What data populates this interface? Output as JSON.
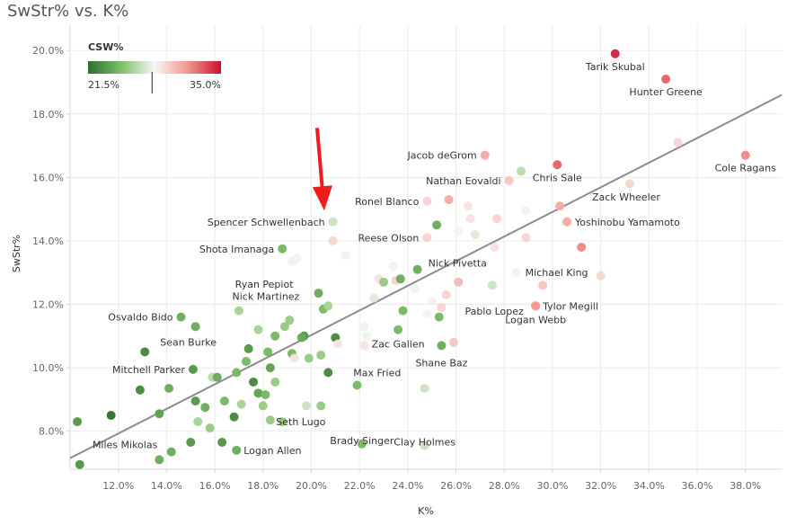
{
  "chart_data": {
    "type": "scatter",
    "title": "SwStr% vs. K%",
    "xlabel": "K%",
    "ylabel": "SwStr%",
    "xlim": [
      10.0,
      39.5
    ],
    "ylim": [
      6.8,
      20.8
    ],
    "x_ticks": [
      12,
      14,
      16,
      18,
      20,
      22,
      24,
      26,
      28,
      30,
      32,
      34,
      36,
      38
    ],
    "y_ticks": [
      8,
      10,
      12,
      14,
      16,
      18,
      20
    ],
    "tick_suffix": ".0%",
    "legend": {
      "title": "CSW%",
      "min_label": "21.5%",
      "max_label": "35.0%",
      "min": 21.5,
      "max": 35.0,
      "marker": 28.0,
      "placement": "top-left",
      "colors": [
        "#2b6e2b",
        "#7fbf66",
        "#f7f7f7",
        "#f3978f",
        "#c8102e"
      ]
    },
    "trendline": {
      "x": [
        10.0,
        39.5
      ],
      "y": [
        7.15,
        18.6
      ],
      "color": "#8c8c8c"
    },
    "arrow": {
      "x": 20.8,
      "y": 14.7,
      "color": "#ee1c1c"
    },
    "points": [
      {
        "x": 32.6,
        "y": 19.9,
        "csw": 34.5,
        "label": "Tarik Skubal",
        "anchor": "middle",
        "dx": 0,
        "dy": 18
      },
      {
        "x": 34.7,
        "y": 19.1,
        "csw": 33.0,
        "label": "Hunter Greene",
        "anchor": "middle",
        "dx": 0,
        "dy": 18
      },
      {
        "x": 35.2,
        "y": 17.1,
        "csw": 29.5,
        "label": "",
        "anchor": "start",
        "dx": 0,
        "dy": 0
      },
      {
        "x": 38.0,
        "y": 16.7,
        "csw": 32.0,
        "label": "Cole Ragans",
        "anchor": "middle",
        "dx": 0,
        "dy": 18
      },
      {
        "x": 30.2,
        "y": 16.4,
        "csw": 33.0,
        "label": "Chris Sale",
        "anchor": "middle",
        "dx": 0,
        "dy": 18
      },
      {
        "x": 27.2,
        "y": 16.7,
        "csw": 31.0,
        "label": "Jacob deGrom",
        "anchor": "end",
        "dx": -9,
        "dy": 4
      },
      {
        "x": 28.7,
        "y": 16.2,
        "csw": 26.5,
        "label": "",
        "anchor": "start",
        "dx": 0,
        "dy": 0
      },
      {
        "x": 28.2,
        "y": 15.9,
        "csw": 30.0,
        "label": "Nathan Eovaldi",
        "anchor": "end",
        "dx": -9,
        "dy": 4
      },
      {
        "x": 33.2,
        "y": 15.8,
        "csw": 29.5,
        "label": "",
        "anchor": "start",
        "dx": 0,
        "dy": 0
      },
      {
        "x": 25.7,
        "y": 15.3,
        "csw": 31.0,
        "label": "",
        "anchor": "start",
        "dx": 0,
        "dy": 0
      },
      {
        "x": 24.8,
        "y": 15.25,
        "csw": 29.5,
        "label": "Ronel Blanco",
        "anchor": "end",
        "dx": -9,
        "dy": 4
      },
      {
        "x": 30.3,
        "y": 15.1,
        "csw": 31.0,
        "label": "Zack Wheeler",
        "anchor": "start",
        "dx": 36,
        "dy": -6
      },
      {
        "x": 26.5,
        "y": 15.1,
        "csw": 29.0,
        "label": "",
        "anchor": "start",
        "dx": 0,
        "dy": 0
      },
      {
        "x": 28.9,
        "y": 14.95,
        "csw": 28.0,
        "label": "",
        "anchor": "start",
        "dx": 0,
        "dy": 0
      },
      {
        "x": 20.9,
        "y": 14.6,
        "csw": 27.0,
        "label": "Spencer Schwellenbach",
        "anchor": "end",
        "dx": -9,
        "dy": 4
      },
      {
        "x": 30.6,
        "y": 14.6,
        "csw": 31.0,
        "label": "Yoshinobu Yamamoto",
        "anchor": "start",
        "dx": 9,
        "dy": 4
      },
      {
        "x": 26.6,
        "y": 14.7,
        "csw": 29.0,
        "label": "",
        "anchor": "start",
        "dx": 0,
        "dy": 0
      },
      {
        "x": 27.7,
        "y": 14.7,
        "csw": 29.5,
        "label": "",
        "anchor": "start",
        "dx": 0,
        "dy": 0
      },
      {
        "x": 25.2,
        "y": 14.5,
        "csw": 24.0,
        "label": "",
        "anchor": "start",
        "dx": 0,
        "dy": 0
      },
      {
        "x": 26.1,
        "y": 14.3,
        "csw": 28.5,
        "label": "",
        "anchor": "start",
        "dx": 0,
        "dy": 0
      },
      {
        "x": 26.8,
        "y": 14.2,
        "csw": 27.5,
        "label": "",
        "anchor": "start",
        "dx": 0,
        "dy": 0
      },
      {
        "x": 20.9,
        "y": 14.0,
        "csw": 29.5,
        "label": "",
        "anchor": "start",
        "dx": 0,
        "dy": 0
      },
      {
        "x": 24.8,
        "y": 14.1,
        "csw": 29.5,
        "label": "Reese Olson",
        "anchor": "end",
        "dx": -9,
        "dy": 4
      },
      {
        "x": 28.9,
        "y": 14.1,
        "csw": 29.5,
        "label": "",
        "anchor": "start",
        "dx": 0,
        "dy": 0
      },
      {
        "x": 27.6,
        "y": 13.8,
        "csw": 29.0,
        "label": "",
        "anchor": "start",
        "dx": 0,
        "dy": 0
      },
      {
        "x": 31.2,
        "y": 13.8,
        "csw": 32.0,
        "label": "",
        "anchor": "start",
        "dx": 0,
        "dy": 0
      },
      {
        "x": 18.8,
        "y": 13.75,
        "csw": 24.5,
        "label": "Shota Imanaga",
        "anchor": "end",
        "dx": -9,
        "dy": 4
      },
      {
        "x": 21.4,
        "y": 13.55,
        "csw": 28.0,
        "label": "",
        "anchor": "start",
        "dx": 0,
        "dy": 0
      },
      {
        "x": 19.4,
        "y": 13.45,
        "csw": 28.0,
        "label": "",
        "anchor": "start",
        "dx": 0,
        "dy": 0
      },
      {
        "x": 19.2,
        "y": 13.35,
        "csw": 28.0,
        "label": "",
        "anchor": "start",
        "dx": 0,
        "dy": 0
      },
      {
        "x": 23.4,
        "y": 13.2,
        "csw": 28.0,
        "label": "",
        "anchor": "start",
        "dx": 0,
        "dy": 0
      },
      {
        "x": 24.4,
        "y": 13.1,
        "csw": 24.0,
        "label": "Nick Pivetta",
        "anchor": "start",
        "dx": 12,
        "dy": -3
      },
      {
        "x": 28.5,
        "y": 13.0,
        "csw": 28.5,
        "label": "Michael King",
        "anchor": "start",
        "dx": 10,
        "dy": 4
      },
      {
        "x": 32.0,
        "y": 12.9,
        "csw": 29.5,
        "label": "",
        "anchor": "start",
        "dx": 0,
        "dy": 0
      },
      {
        "x": 22.8,
        "y": 12.8,
        "csw": 29.0,
        "label": "",
        "anchor": "start",
        "dx": 0,
        "dy": 0
      },
      {
        "x": 23.0,
        "y": 12.7,
        "csw": 25.5,
        "label": "",
        "anchor": "start",
        "dx": 0,
        "dy": 0
      },
      {
        "x": 23.5,
        "y": 12.75,
        "csw": 29.5,
        "label": "",
        "anchor": "start",
        "dx": 0,
        "dy": 0
      },
      {
        "x": 23.7,
        "y": 12.8,
        "csw": 24.0,
        "label": "",
        "anchor": "start",
        "dx": 0,
        "dy": 0
      },
      {
        "x": 26.1,
        "y": 12.7,
        "csw": 30.5,
        "label": "",
        "anchor": "start",
        "dx": 0,
        "dy": 0
      },
      {
        "x": 27.5,
        "y": 12.6,
        "csw": 27.0,
        "label": "",
        "anchor": "start",
        "dx": 0,
        "dy": 0
      },
      {
        "x": 29.6,
        "y": 12.6,
        "csw": 30.0,
        "label": "",
        "anchor": "start",
        "dx": 0,
        "dy": 0
      },
      {
        "x": 24.3,
        "y": 12.5,
        "csw": 28.0,
        "label": "",
        "anchor": "start",
        "dx": 0,
        "dy": 0
      },
      {
        "x": 20.3,
        "y": 12.35,
        "csw": 24.0,
        "label": "Ryan Pepiot",
        "anchor": "end",
        "dx": -28,
        "dy": -6
      },
      {
        "x": 25.6,
        "y": 12.3,
        "csw": 29.5,
        "label": "",
        "anchor": "start",
        "dx": 0,
        "dy": 0
      },
      {
        "x": 22.6,
        "y": 12.2,
        "csw": 27.5,
        "label": "",
        "anchor": "start",
        "dx": 0,
        "dy": 0
      },
      {
        "x": 25.0,
        "y": 12.1,
        "csw": 28.5,
        "label": "",
        "anchor": "start",
        "dx": 0,
        "dy": 0
      },
      {
        "x": 25.4,
        "y": 11.9,
        "csw": 29.5,
        "label": "Pablo Lopez",
        "anchor": "start",
        "dx": 26,
        "dy": 8
      },
      {
        "x": 29.3,
        "y": 11.95,
        "csw": 31.5,
        "label": "Tylor Megill",
        "anchor": "start",
        "dx": 8,
        "dy": 4
      },
      {
        "x": 20.5,
        "y": 11.85,
        "csw": 24.5,
        "label": "",
        "anchor": "start",
        "dx": 0,
        "dy": 0
      },
      {
        "x": 20.7,
        "y": 11.95,
        "csw": 26.0,
        "label": "",
        "anchor": "start",
        "dx": 0,
        "dy": 0
      },
      {
        "x": 17.0,
        "y": 11.8,
        "csw": 26.0,
        "label": "Nick Martinez",
        "anchor": "middle",
        "dx": 30,
        "dy": -12
      },
      {
        "x": 23.8,
        "y": 11.8,
        "csw": 24.5,
        "label": "",
        "anchor": "start",
        "dx": 0,
        "dy": 0
      },
      {
        "x": 24.8,
        "y": 11.7,
        "csw": 28.5,
        "label": "",
        "anchor": "start",
        "dx": 0,
        "dy": 0
      },
      {
        "x": 14.6,
        "y": 11.6,
        "csw": 24.0,
        "label": "Osvaldo Bido",
        "anchor": "end",
        "dx": -9,
        "dy": 4
      },
      {
        "x": 25.3,
        "y": 11.6,
        "csw": 24.5,
        "label": "",
        "anchor": "start",
        "dx": 0,
        "dy": 0
      },
      {
        "x": 19.1,
        "y": 11.5,
        "csw": 25.5,
        "label": "",
        "anchor": "start",
        "dx": 0,
        "dy": 0
      },
      {
        "x": 15.2,
        "y": 11.3,
        "csw": 24.0,
        "label": "",
        "anchor": "start",
        "dx": 0,
        "dy": 0
      },
      {
        "x": 18.9,
        "y": 11.3,
        "csw": 25.5,
        "label": "",
        "anchor": "start",
        "dx": 0,
        "dy": 0
      },
      {
        "x": 22.2,
        "y": 11.3,
        "csw": 28.0,
        "label": "",
        "anchor": "start",
        "dx": 0,
        "dy": 0
      },
      {
        "x": 17.8,
        "y": 11.2,
        "csw": 26.0,
        "label": "",
        "anchor": "start",
        "dx": 0,
        "dy": 0
      },
      {
        "x": 23.6,
        "y": 11.2,
        "csw": 24.5,
        "label": "Zac Gallen",
        "anchor": "middle",
        "dx": 0,
        "dy": 20
      },
      {
        "x": 22.3,
        "y": 11.0,
        "csw": 28.0,
        "label": "",
        "anchor": "start",
        "dx": 0,
        "dy": 0
      },
      {
        "x": 18.5,
        "y": 11.0,
        "csw": 24.5,
        "label": "",
        "anchor": "start",
        "dx": 0,
        "dy": 0
      },
      {
        "x": 19.7,
        "y": 11.0,
        "csw": 23.0,
        "label": "",
        "anchor": "start",
        "dx": 0,
        "dy": 0
      },
      {
        "x": 19.6,
        "y": 10.95,
        "csw": 24.0,
        "label": "",
        "anchor": "start",
        "dx": 0,
        "dy": 0
      },
      {
        "x": 21.0,
        "y": 10.95,
        "csw": 22.5,
        "label": "",
        "anchor": "start",
        "dx": 0,
        "dy": 0
      },
      {
        "x": 21.1,
        "y": 10.75,
        "csw": 29.0,
        "label": "",
        "anchor": "start",
        "dx": 0,
        "dy": 0
      },
      {
        "x": 25.9,
        "y": 10.8,
        "csw": 30.0,
        "label": "",
        "anchor": "start",
        "dx": 0,
        "dy": 0
      },
      {
        "x": 22.2,
        "y": 10.7,
        "csw": 29.0,
        "label": "",
        "anchor": "start",
        "dx": 0,
        "dy": 0
      },
      {
        "x": 25.4,
        "y": 10.7,
        "csw": 24.0,
        "label": "Shane Baz",
        "anchor": "middle",
        "dx": 0,
        "dy": 23
      },
      {
        "x": 13.1,
        "y": 10.5,
        "csw": 22.5,
        "label": "Sean Burke",
        "anchor": "start",
        "dx": 17,
        "dy": -7
      },
      {
        "x": 17.4,
        "y": 10.6,
        "csw": 23.0,
        "label": "",
        "anchor": "start",
        "dx": 0,
        "dy": 0
      },
      {
        "x": 18.2,
        "y": 10.5,
        "csw": 24.5,
        "label": "",
        "anchor": "start",
        "dx": 0,
        "dy": 0
      },
      {
        "x": 19.2,
        "y": 10.45,
        "csw": 24.5,
        "label": "",
        "anchor": "start",
        "dx": 0,
        "dy": 0
      },
      {
        "x": 20.4,
        "y": 10.4,
        "csw": 25.5,
        "label": "",
        "anchor": "start",
        "dx": 0,
        "dy": 0
      },
      {
        "x": 19.3,
        "y": 10.3,
        "csw": 29.0,
        "label": "",
        "anchor": "start",
        "dx": 0,
        "dy": 0
      },
      {
        "x": 19.9,
        "y": 10.3,
        "csw": 25.5,
        "label": "",
        "anchor": "start",
        "dx": 0,
        "dy": 0
      },
      {
        "x": 17.3,
        "y": 10.2,
        "csw": 24.5,
        "label": "",
        "anchor": "start",
        "dx": 0,
        "dy": 0
      },
      {
        "x": 18.3,
        "y": 10.0,
        "csw": 23.5,
        "label": "",
        "anchor": "start",
        "dx": 0,
        "dy": 0
      },
      {
        "x": 15.1,
        "y": 9.95,
        "csw": 23.0,
        "label": "Mitchell Parker",
        "anchor": "end",
        "dx": -9,
        "dy": 4
      },
      {
        "x": 20.7,
        "y": 9.85,
        "csw": 22.5,
        "label": "Max Fried",
        "anchor": "start",
        "dx": 28,
        "dy": 4
      },
      {
        "x": 16.9,
        "y": 9.85,
        "csw": 24.5,
        "label": "",
        "anchor": "start",
        "dx": 0,
        "dy": 0
      },
      {
        "x": 15.9,
        "y": 9.7,
        "csw": 26.5,
        "label": "",
        "anchor": "start",
        "dx": 0,
        "dy": 0
      },
      {
        "x": 16.1,
        "y": 9.7,
        "csw": 24.0,
        "label": "",
        "anchor": "start",
        "dx": 0,
        "dy": 0
      },
      {
        "x": 17.6,
        "y": 9.55,
        "csw": 22.5,
        "label": "",
        "anchor": "start",
        "dx": 0,
        "dy": 0
      },
      {
        "x": 18.5,
        "y": 9.55,
        "csw": 25.5,
        "label": "",
        "anchor": "start",
        "dx": 0,
        "dy": 0
      },
      {
        "x": 21.9,
        "y": 9.45,
        "csw": 24.5,
        "label": "",
        "anchor": "start",
        "dx": 0,
        "dy": 0
      },
      {
        "x": 14.1,
        "y": 9.35,
        "csw": 24.0,
        "label": "",
        "anchor": "start",
        "dx": 0,
        "dy": 0
      },
      {
        "x": 12.9,
        "y": 9.3,
        "csw": 22.5,
        "label": "",
        "anchor": "start",
        "dx": 0,
        "dy": 0
      },
      {
        "x": 24.7,
        "y": 9.35,
        "csw": 27.0,
        "label": "",
        "anchor": "start",
        "dx": 0,
        "dy": 0
      },
      {
        "x": 17.8,
        "y": 9.2,
        "csw": 23.5,
        "label": "",
        "anchor": "start",
        "dx": 0,
        "dy": 0
      },
      {
        "x": 18.1,
        "y": 9.15,
        "csw": 24.5,
        "label": "",
        "anchor": "start",
        "dx": 0,
        "dy": 0
      },
      {
        "x": 15.2,
        "y": 8.95,
        "csw": 23.0,
        "label": "",
        "anchor": "start",
        "dx": 0,
        "dy": 0
      },
      {
        "x": 16.4,
        "y": 8.95,
        "csw": 24.5,
        "label": "",
        "anchor": "start",
        "dx": 0,
        "dy": 0
      },
      {
        "x": 17.1,
        "y": 8.85,
        "csw": 26.0,
        "label": "",
        "anchor": "start",
        "dx": 0,
        "dy": 0
      },
      {
        "x": 18.0,
        "y": 8.8,
        "csw": 25.5,
        "label": "",
        "anchor": "start",
        "dx": 0,
        "dy": 0
      },
      {
        "x": 19.8,
        "y": 8.8,
        "csw": 27.0,
        "label": "",
        "anchor": "start",
        "dx": 0,
        "dy": 0
      },
      {
        "x": 20.4,
        "y": 8.8,
        "csw": 25.5,
        "label": "",
        "anchor": "start",
        "dx": 0,
        "dy": 0
      },
      {
        "x": 15.6,
        "y": 8.75,
        "csw": 24.0,
        "label": "",
        "anchor": "start",
        "dx": 0,
        "dy": 0
      },
      {
        "x": 13.7,
        "y": 8.55,
        "csw": 23.5,
        "label": "",
        "anchor": "start",
        "dx": 0,
        "dy": 0
      },
      {
        "x": 11.7,
        "y": 8.5,
        "csw": 21.5,
        "label": "",
        "anchor": "start",
        "dx": 0,
        "dy": 0
      },
      {
        "x": 16.8,
        "y": 8.45,
        "csw": 22.5,
        "label": "",
        "anchor": "start",
        "dx": 0,
        "dy": 0
      },
      {
        "x": 18.3,
        "y": 8.35,
        "csw": 25.5,
        "label": "",
        "anchor": "start",
        "dx": 0,
        "dy": 0
      },
      {
        "x": 10.3,
        "y": 8.3,
        "csw": 23.0,
        "label": "",
        "anchor": "start",
        "dx": 0,
        "dy": 0
      },
      {
        "x": 15.3,
        "y": 8.3,
        "csw": 26.0,
        "label": "",
        "anchor": "start",
        "dx": 0,
        "dy": 0
      },
      {
        "x": 15.8,
        "y": 8.1,
        "csw": 25.5,
        "label": "",
        "anchor": "start",
        "dx": 0,
        "dy": 0
      },
      {
        "x": 18.8,
        "y": 8.3,
        "csw": 25.5,
        "label": "Seth Lugo",
        "anchor": "start",
        "dx": -7,
        "dy": 4
      },
      {
        "x": 22.1,
        "y": 7.6,
        "csw": 24.5,
        "label": "Brady Singer",
        "anchor": "middle",
        "dx": 0,
        "dy": 0
      },
      {
        "x": 24.7,
        "y": 7.55,
        "csw": 27.0,
        "label": "Clay Holmes",
        "anchor": "middle",
        "dx": 0,
        "dy": 0
      },
      {
        "x": 15.0,
        "y": 7.65,
        "csw": 23.0,
        "label": "",
        "anchor": "start",
        "dx": 0,
        "dy": 0
      },
      {
        "x": 16.3,
        "y": 7.65,
        "csw": 23.0,
        "label": "",
        "anchor": "start",
        "dx": 0,
        "dy": 0
      },
      {
        "x": 14.2,
        "y": 7.35,
        "csw": 24.0,
        "label": "",
        "anchor": "start",
        "dx": 0,
        "dy": 0
      },
      {
        "x": 16.9,
        "y": 7.4,
        "csw": 24.0,
        "label": "Logan Allen",
        "anchor": "start",
        "dx": 8,
        "dy": 4
      },
      {
        "x": 13.7,
        "y": 7.1,
        "csw": 24.0,
        "label": "Miles Mikolas",
        "anchor": "end",
        "dx": -2,
        "dy": -13
      },
      {
        "x": 10.4,
        "y": 6.95,
        "csw": 23.0,
        "label": "",
        "anchor": "start",
        "dx": 0,
        "dy": 0
      },
      {
        "x": 29.3,
        "y": 11.95,
        "csw": 31.5,
        "label": "Logan Webb",
        "anchor": "middle",
        "dx": 0,
        "dy": 19
      }
    ]
  }
}
